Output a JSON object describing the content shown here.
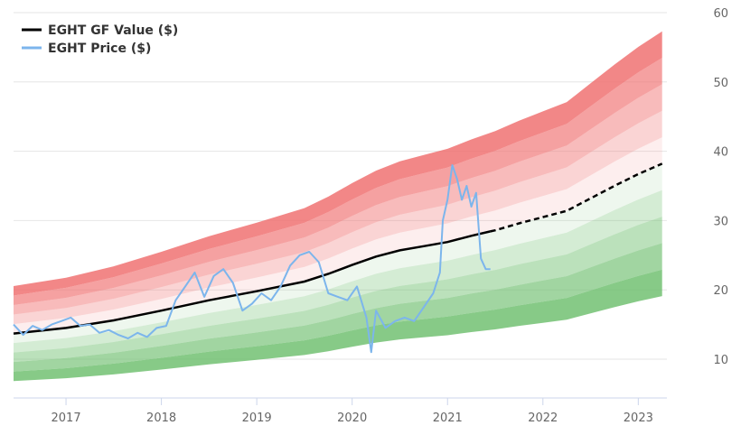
{
  "chart_data": {
    "type": "area",
    "title": "",
    "xlabel": "",
    "ylabel": "",
    "xlim": [
      2016.45,
      2023.3
    ],
    "ylim": [
      4,
      60
    ],
    "x_ticks": [
      "2017",
      "2018",
      "2019",
      "2020",
      "2021",
      "2022",
      "2023"
    ],
    "y_ticks": [
      "10",
      "20",
      "30",
      "40",
      "50",
      "60"
    ],
    "grid": true,
    "legend_position": "top-left",
    "legend": [
      {
        "label": "EGHT GF Value ($)",
        "color": "#000000"
      },
      {
        "label": "EGHT Price ($)",
        "color": "#7cb5ec"
      }
    ],
    "gf_value": {
      "x": [
        2016.45,
        2017.0,
        2017.5,
        2018.0,
        2018.5,
        2019.0,
        2019.5,
        2019.75,
        2020.0,
        2020.25,
        2020.5,
        2020.75,
        2021.0,
        2021.25,
        2021.5,
        2021.75,
        2022.0,
        2022.25,
        2022.5,
        2022.75,
        2023.0,
        2023.25
      ],
      "values": [
        13.7,
        14.5,
        15.6,
        17.0,
        18.5,
        19.8,
        21.2,
        22.3,
        23.6,
        24.8,
        25.7,
        26.3,
        26.9,
        27.8,
        28.6,
        29.6,
        30.5,
        31.4,
        33.2,
        35.0,
        36.7,
        38.2
      ],
      "projected_from": 2021.45
    },
    "bands": {
      "color_above": "#f07070",
      "color_below": "#70c070",
      "upper_factors": [
        1.1,
        1.2,
        1.3,
        1.4,
        1.5
      ],
      "lower_factors": [
        0.9,
        0.8,
        0.7,
        0.6,
        0.5
      ]
    },
    "price": {
      "x": [
        2016.45,
        2016.55,
        2016.65,
        2016.75,
        2016.85,
        2016.95,
        2017.05,
        2017.15,
        2017.25,
        2017.35,
        2017.45,
        2017.55,
        2017.65,
        2017.75,
        2017.85,
        2017.95,
        2018.05,
        2018.15,
        2018.25,
        2018.35,
        2018.45,
        2018.55,
        2018.65,
        2018.75,
        2018.85,
        2018.95,
        2019.05,
        2019.15,
        2019.25,
        2019.35,
        2019.45,
        2019.55,
        2019.65,
        2019.75,
        2019.85,
        2019.95,
        2020.05,
        2020.15,
        2020.2,
        2020.25,
        2020.35,
        2020.45,
        2020.55,
        2020.65,
        2020.75,
        2020.85,
        2020.92,
        2020.95,
        2021.0,
        2021.05,
        2021.1,
        2021.15,
        2021.2,
        2021.25,
        2021.3,
        2021.35,
        2021.4,
        2021.45
      ],
      "values": [
        15.0,
        13.5,
        14.8,
        14.2,
        15.0,
        15.5,
        16.0,
        14.8,
        15.0,
        13.8,
        14.2,
        13.5,
        13.0,
        13.8,
        13.2,
        14.5,
        14.8,
        18.5,
        20.5,
        22.5,
        19.0,
        22.0,
        23.0,
        21.0,
        17.0,
        18.0,
        19.5,
        18.5,
        20.5,
        23.5,
        25.0,
        25.5,
        24.0,
        19.5,
        19.0,
        18.5,
        20.5,
        16.0,
        11.0,
        17.0,
        14.5,
        15.5,
        16.0,
        15.5,
        17.5,
        19.5,
        22.5,
        30.0,
        33.0,
        38.0,
        36.0,
        33.0,
        35.0,
        32.0,
        34.0,
        24.5,
        23.0,
        23.0
      ]
    }
  }
}
